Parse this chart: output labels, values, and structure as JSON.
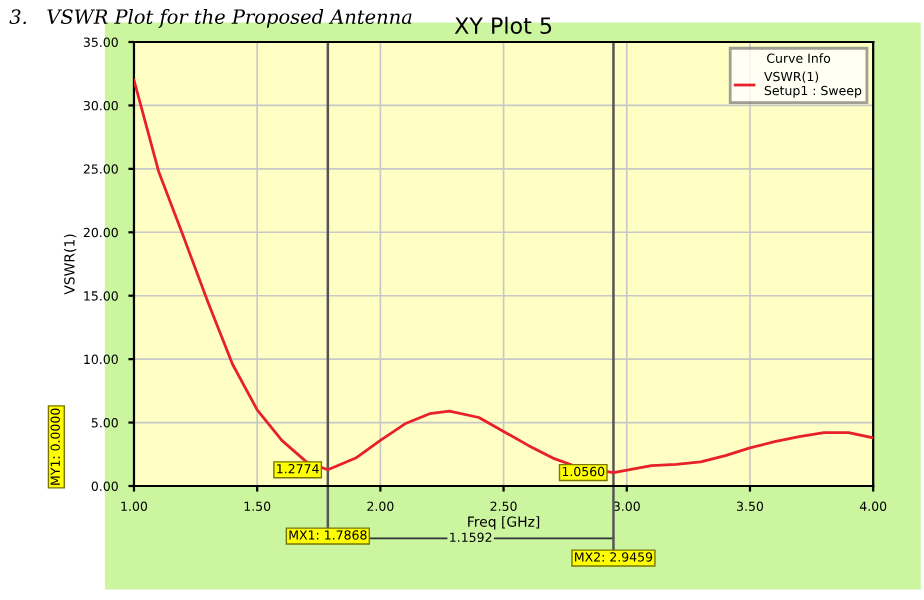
{
  "chart_data": {
    "type": "line",
    "title": "XY Plot 5",
    "subtitle": "3.   VSWR Plot for the Proposed Antenna",
    "xlabel": "Freq [GHz]",
    "ylabel": "VSWR(1)",
    "legend_title": "Curve Info",
    "x": [
      1.0,
      1.1,
      1.2,
      1.3,
      1.4,
      1.5,
      1.6,
      1.7,
      1.7868,
      1.9,
      2.0,
      2.1,
      2.2,
      2.28,
      2.4,
      2.5,
      2.6,
      2.7,
      2.8,
      2.9459,
      3.1,
      3.2,
      3.3,
      3.4,
      3.5,
      3.6,
      3.7,
      3.8,
      3.9,
      4.0
    ],
    "series": [
      {
        "name": "VSWR(1)\nSetup1 : Sweep",
        "color": "#e8202a",
        "values": [
          32,
          24.8,
          19.7,
          14.5,
          9.6,
          6.0,
          3.6,
          1.9,
          1.2774,
          2.2,
          3.6,
          4.9,
          5.7,
          5.9,
          5.4,
          4.3,
          3.2,
          2.2,
          1.5,
          1.056,
          1.6,
          1.7,
          1.9,
          2.4,
          3.0,
          3.5,
          3.9,
          4.2,
          4.2,
          3.8
        ]
      }
    ],
    "xlim": [
      1.0,
      4.0
    ],
    "ylim": [
      0,
      35
    ],
    "xticks": [
      {
        "value": 1.0,
        "label": "1.00"
      },
      {
        "value": 1.5,
        "label": "1.50"
      },
      {
        "value": 2.0,
        "label": "2.00"
      },
      {
        "value": 2.5,
        "label": "2.50"
      },
      {
        "value": 3.0,
        "label": "3.00"
      },
      {
        "value": 3.5,
        "label": "3.50"
      },
      {
        "value": 4.0,
        "label": "4.00"
      }
    ],
    "yticks": [
      {
        "value": 0,
        "label": "0.00"
      },
      {
        "value": 5,
        "label": "5.00"
      },
      {
        "value": 10,
        "label": "10.00"
      },
      {
        "value": 15,
        "label": "15.00"
      },
      {
        "value": 20,
        "label": "20.00"
      },
      {
        "value": 25,
        "label": "25.00"
      },
      {
        "value": 30,
        "label": "30.00"
      },
      {
        "value": 35,
        "label": "35.00"
      }
    ],
    "ref_lines": [
      {
        "axis": "x",
        "value": 1.7868,
        "label": "MX1: 1.7868",
        "color": "#555555"
      },
      {
        "axis": "x",
        "value": 2.9459,
        "label": "MX2: 2.9459",
        "color": "#555555"
      }
    ],
    "annotations": [
      {
        "text": "1.2774",
        "x": 1.7868,
        "y": 1.2774
      },
      {
        "text": "1.0560",
        "x": 2.9459,
        "y": 1.056
      },
      "1.1592",
      "MY1: 0.0000"
    ],
    "grid": true,
    "legend": "top right",
    "marker": "none",
    "line_style": "solid"
  }
}
